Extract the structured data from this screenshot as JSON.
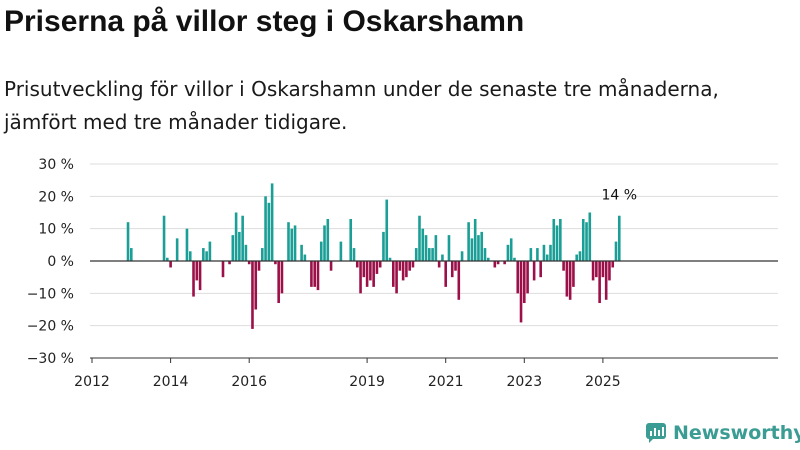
{
  "title": "Priserna på villor steg i Oskarshamn",
  "subtitle": "Prisutveckling för villor i Oskarshamn under de senaste tre månaderna, jämfört med tre månader tidigare.",
  "brand": "Newsworthy",
  "colors": {
    "positive": "#1a9e95",
    "negative": "#9b1048",
    "zero_line": "#333333",
    "grid": "#dddddd",
    "axis": "#333333",
    "brand": "#3a9c93"
  },
  "chart_data": {
    "type": "bar",
    "ylim": [
      -30,
      30
    ],
    "y_ticks": [
      {
        "value": -30,
        "label": "−30 %"
      },
      {
        "value": -20,
        "label": "−20 %"
      },
      {
        "value": -10,
        "label": "−10 %"
      },
      {
        "value": 0,
        "label": "0 %"
      },
      {
        "value": 10,
        "label": "10 %"
      },
      {
        "value": 20,
        "label": "20 %"
      },
      {
        "value": 30,
        "label": "30 %"
      }
    ],
    "x_ticks": [
      "2012",
      "2014",
      "2016",
      "2019",
      "2021",
      "2023",
      "2025"
    ],
    "grid": true,
    "annotation": {
      "label": "14 %",
      "value": 14
    },
    "values": [
      12,
      4,
      0,
      0,
      0,
      0,
      0,
      0,
      0,
      0,
      0,
      14,
      1,
      -2,
      0,
      7,
      0,
      0,
      10,
      3,
      -11,
      -6,
      -9,
      4,
      3,
      6,
      0,
      0,
      0,
      -5,
      0,
      -1,
      8,
      15,
      9,
      14,
      5,
      -1,
      -21,
      -15,
      -3,
      4,
      20,
      18,
      24,
      -1,
      -13,
      -10,
      0,
      12,
      10,
      11,
      0,
      5,
      2,
      0,
      -8,
      -8,
      -9,
      6,
      11,
      13,
      -3,
      0,
      0,
      6,
      0,
      0,
      13,
      4,
      -2,
      -10,
      -5,
      -8,
      -6,
      -8,
      -4,
      -2,
      9,
      19,
      1,
      -8,
      -10,
      -3,
      -6,
      -5,
      -3,
      -2,
      4,
      14,
      10,
      8,
      4,
      4,
      8,
      -2,
      2,
      -8,
      8,
      -5,
      -3,
      -12,
      3,
      0,
      12,
      7,
      13,
      8,
      9,
      4,
      1,
      0,
      -2,
      -1,
      0,
      -1,
      5,
      7,
      1,
      -10,
      -19,
      -13,
      -10,
      4,
      -6,
      4,
      -5,
      5,
      2,
      5,
      13,
      11,
      13,
      -3,
      -11,
      -12,
      -8,
      2,
      3,
      13,
      12,
      15,
      -6,
      -5,
      -13,
      -5,
      -12,
      -6,
      -2,
      6,
      14
    ],
    "period_start": "2012-12",
    "period_end": "2025-07"
  }
}
